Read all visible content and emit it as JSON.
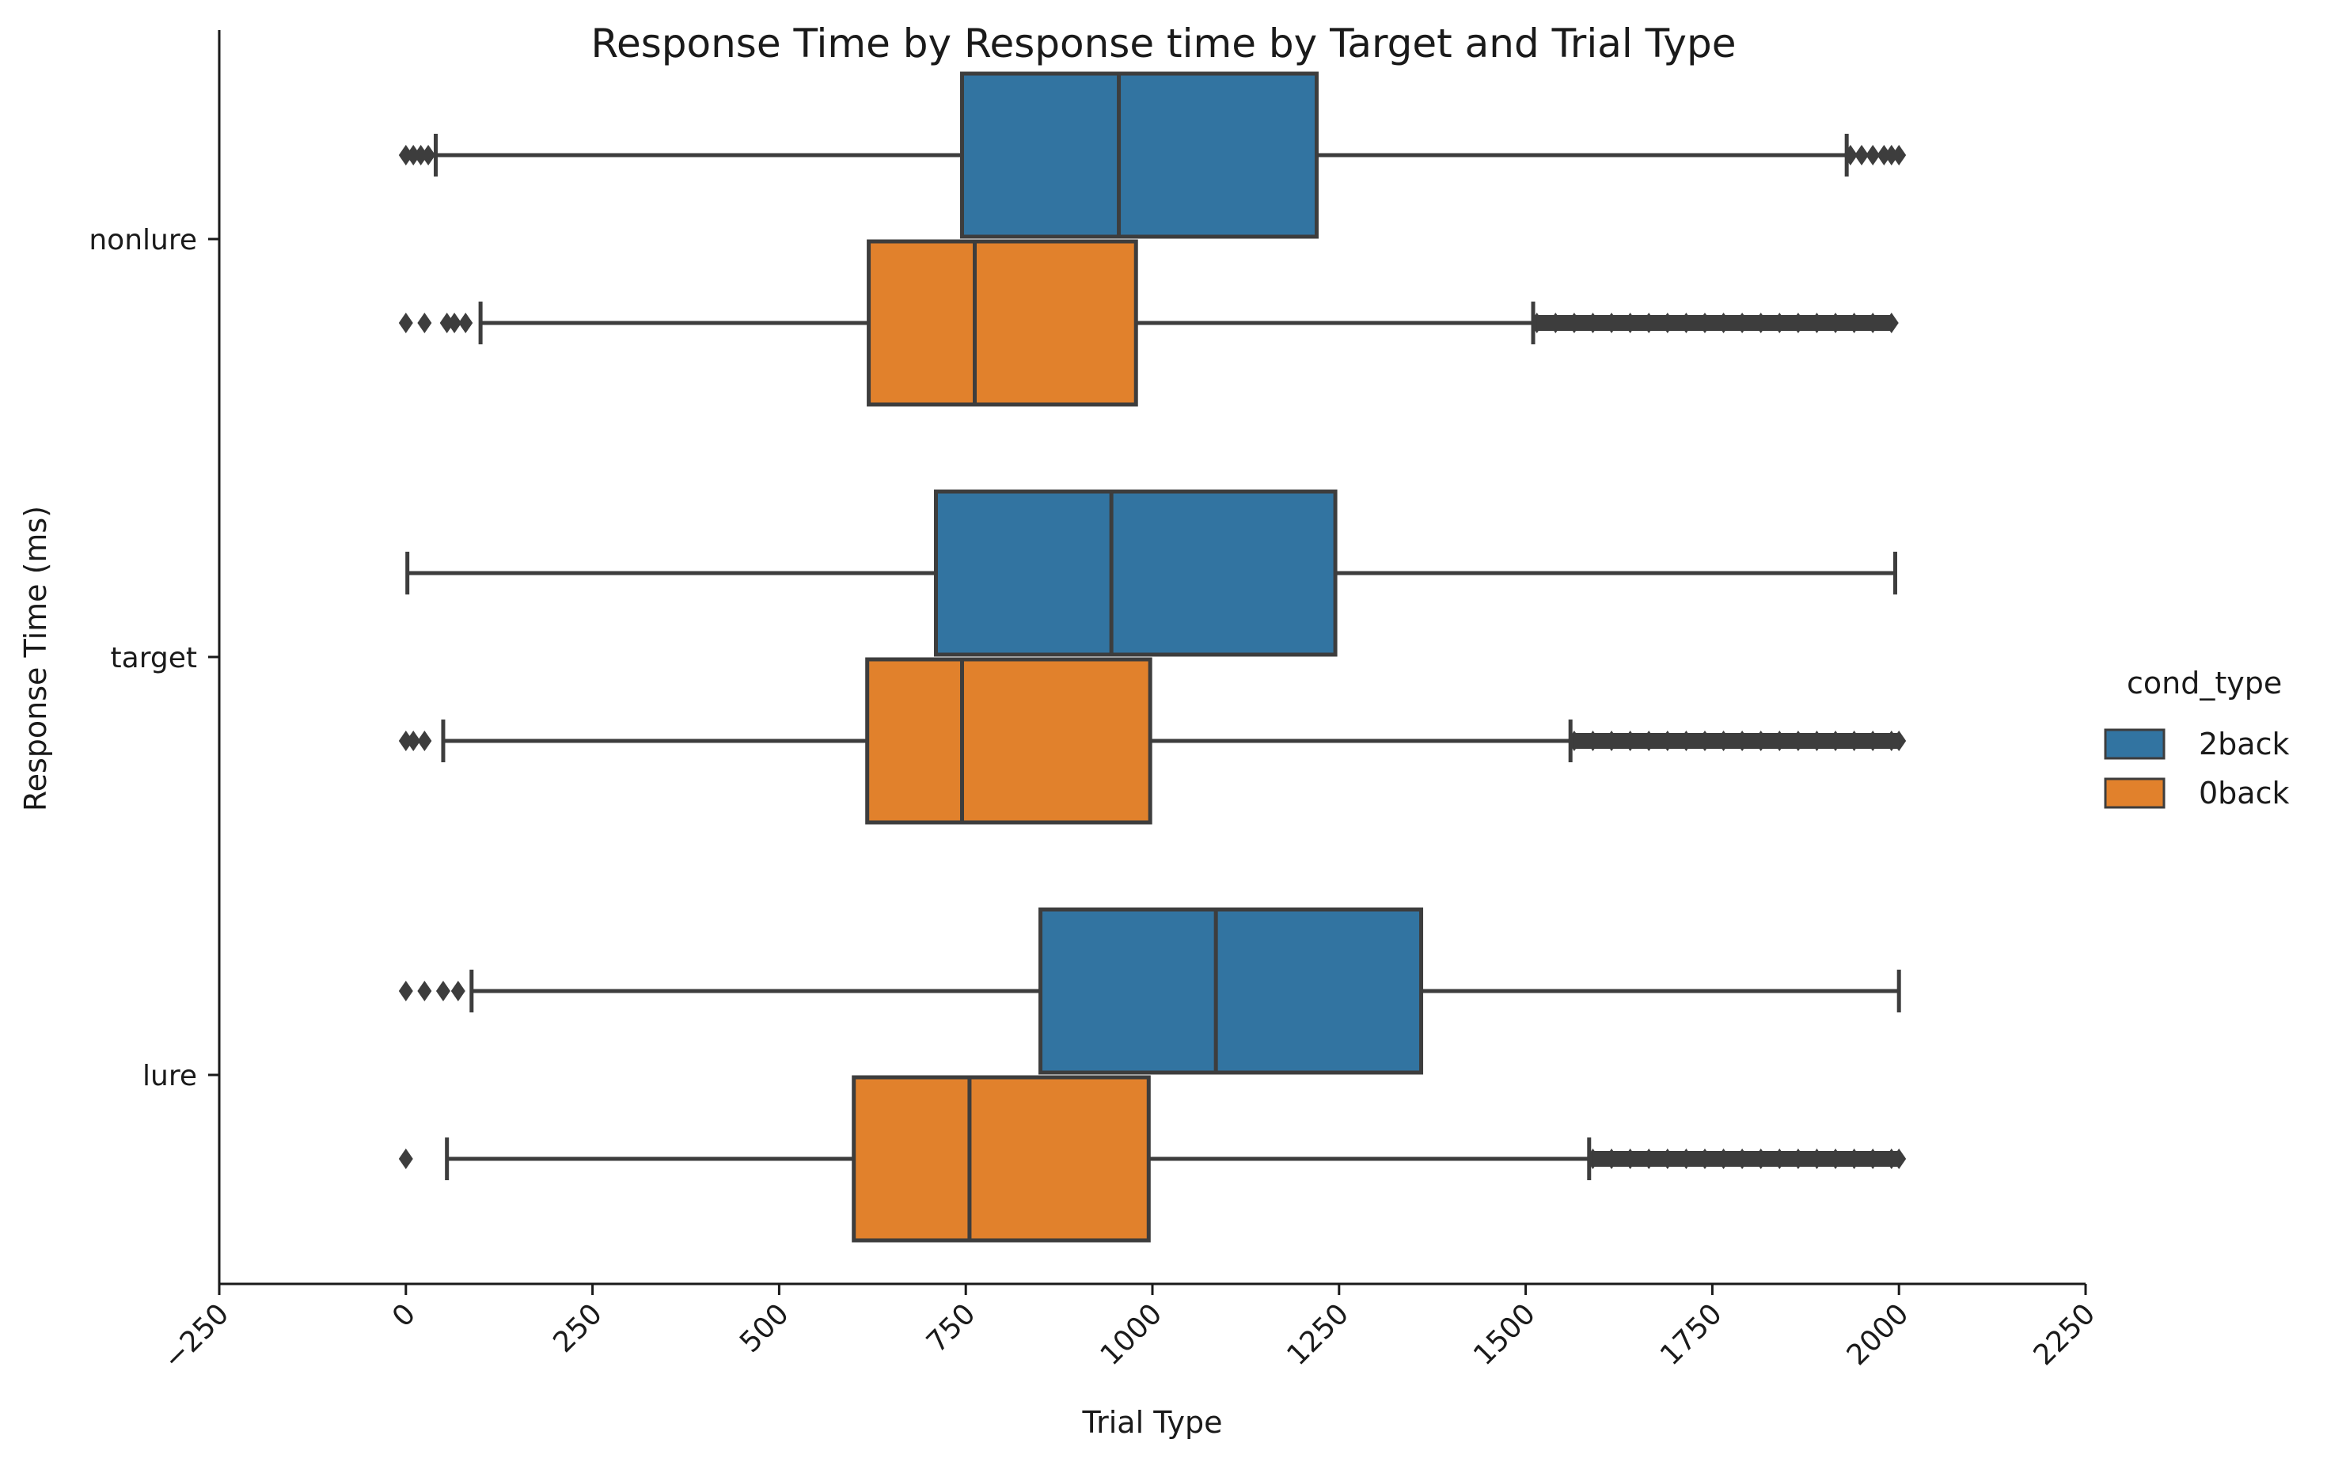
{
  "chart_data": {
    "type": "boxplot",
    "title": "Response Time by Response time by Target and Trial Type",
    "xlabel": "Trial Type",
    "ylabel": "Response Time (ms)",
    "xlim": [
      -250,
      2250
    ],
    "xticks": [
      -250,
      0,
      250,
      500,
      750,
      1000,
      1250,
      1500,
      1750,
      2000,
      2250
    ],
    "categories": [
      "nonlure",
      "target",
      "lure"
    ],
    "legend": {
      "title": "cond_type",
      "placement": "right",
      "entries": [
        {
          "name": "2back",
          "color": "#3274a1"
        },
        {
          "name": "0back",
          "color": "#e1812c"
        }
      ]
    },
    "series": [
      {
        "name": "2back",
        "color": "#3274a1",
        "boxes": [
          {
            "category": "nonlure",
            "whislo": 40,
            "q1": 745,
            "med": 955,
            "q3": 1220,
            "whishi": 1930,
            "fliers_low": [
              0,
              10,
              20,
              30
            ],
            "fliers_high": [
              1935,
              1950,
              1965,
              1980,
              1990,
              2000
            ]
          },
          {
            "category": "target",
            "whislo": 2,
            "q1": 710,
            "med": 945,
            "q3": 1245,
            "whishi": 1995,
            "fliers_low": [],
            "fliers_high": []
          },
          {
            "category": "lure",
            "whislo": 88,
            "q1": 850,
            "med": 1085,
            "q3": 1360,
            "whishi": 2000,
            "fliers_low": [
              0,
              25,
              50,
              70
            ],
            "fliers_high": []
          }
        ]
      },
      {
        "name": "0back",
        "color": "#e1812c",
        "boxes": [
          {
            "category": "nonlure",
            "whislo": 100,
            "q1": 620,
            "med": 762,
            "q3": 978,
            "whishi": 1510,
            "fliers_low": [
              0,
              25,
              55,
              65,
              80
            ],
            "fliers_high": [
              1515,
              1540,
              1565,
              1590,
              1615,
              1640,
              1665,
              1690,
              1715,
              1740,
              1765,
              1790,
              1815,
              1840,
              1865,
              1890,
              1915,
              1940,
              1965,
              1990
            ]
          },
          {
            "category": "target",
            "whislo": 50,
            "q1": 618,
            "med": 745,
            "q3": 997,
            "whishi": 1560,
            "fliers_low": [
              0,
              10,
              25
            ],
            "fliers_high": [
              1565,
              1590,
              1615,
              1640,
              1665,
              1690,
              1715,
              1740,
              1765,
              1790,
              1815,
              1840,
              1865,
              1890,
              1915,
              1940,
              1965,
              1990,
              2000
            ]
          },
          {
            "category": "lure",
            "whislo": 55,
            "q1": 600,
            "med": 755,
            "q3": 995,
            "whishi": 1585,
            "fliers_low": [
              0
            ],
            "fliers_high": [
              1590,
              1615,
              1640,
              1665,
              1690,
              1715,
              1740,
              1765,
              1790,
              1815,
              1840,
              1865,
              1890,
              1915,
              1940,
              1965,
              1990,
              2000
            ]
          }
        ]
      }
    ]
  }
}
